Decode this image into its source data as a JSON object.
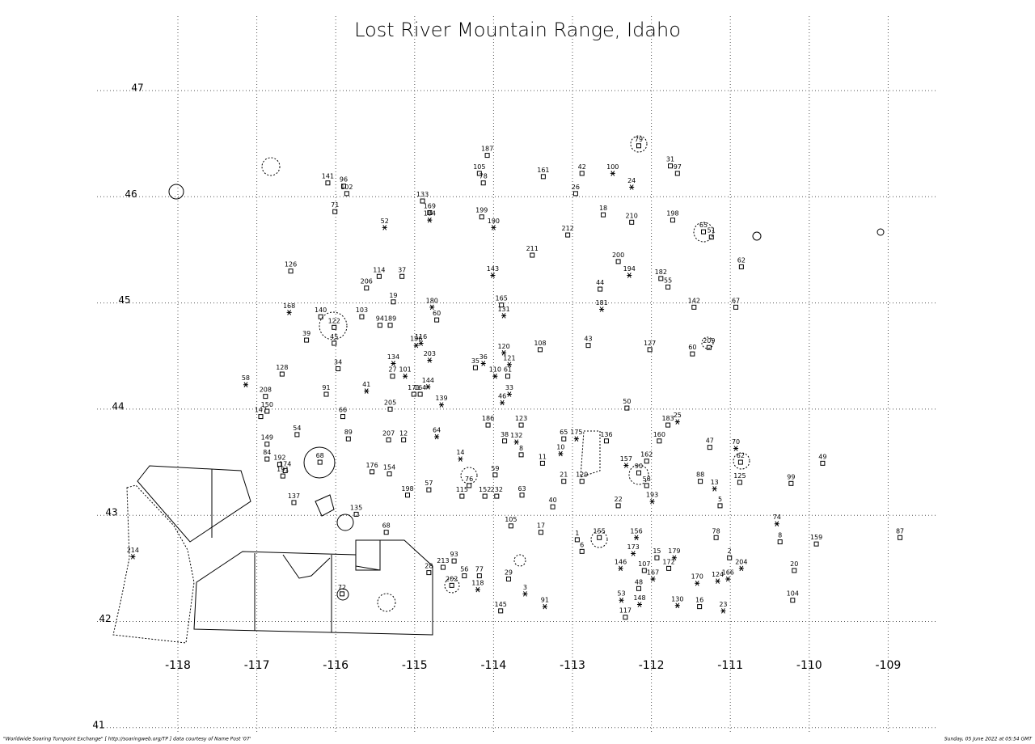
{
  "title": "Lost River Mountain Range, Idaho",
  "footer_left": "\"Worldwide Soaring Turnpoint Exchange\" [ http://soaringweb.org/TP ] data courtesy of Name Post '07'",
  "footer_right": "Sunday, 05 June 2022 at 05:54 GMT",
  "lon_ticks": [
    -118,
    -117,
    -116,
    -115,
    -114,
    -113,
    -112,
    -111,
    -110,
    -109
  ],
  "lat_ticks": [
    47,
    46,
    45,
    44,
    43,
    42,
    41
  ],
  "points": [
    [
      "79",
      -112.16,
      46.48,
      "square"
    ],
    [
      "187",
      -114.08,
      46.39,
      "square"
    ],
    [
      "105",
      -114.18,
      46.22,
      "square"
    ],
    [
      "78",
      -114.13,
      46.13,
      "square"
    ],
    [
      "161",
      -113.37,
      46.19,
      "square"
    ],
    [
      "42",
      -112.88,
      46.22,
      "square"
    ],
    [
      "100",
      -112.49,
      46.22,
      "star"
    ],
    [
      "31",
      -111.76,
      46.29,
      "square"
    ],
    [
      "97",
      -111.67,
      46.22,
      "square"
    ],
    [
      "24",
      -112.25,
      46.09,
      "star"
    ],
    [
      "141",
      -116.1,
      46.13,
      "square"
    ],
    [
      "96",
      -115.9,
      46.1,
      "square"
    ],
    [
      "102",
      -115.86,
      46.03,
      "square"
    ],
    [
      "26",
      -112.96,
      46.03,
      "square"
    ],
    [
      "133",
      -114.9,
      45.96,
      "square"
    ],
    [
      "169",
      -114.81,
      45.85,
      "square"
    ],
    [
      "184",
      -114.81,
      45.78,
      "star"
    ],
    [
      "71",
      -116.01,
      45.86,
      "square"
    ],
    [
      "199",
      -114.15,
      45.81,
      "square"
    ],
    [
      "190",
      -114.0,
      45.71,
      "star"
    ],
    [
      "52",
      -115.38,
      45.71,
      "star"
    ],
    [
      "18",
      -112.61,
      45.83,
      "square"
    ],
    [
      "210",
      -112.25,
      45.76,
      "square"
    ],
    [
      "198",
      -111.73,
      45.78,
      "square"
    ],
    [
      "212",
      -113.06,
      45.64,
      "square"
    ],
    [
      "65",
      -111.34,
      45.67,
      "square"
    ],
    [
      "51",
      -111.24,
      45.62,
      "square"
    ],
    [
      "211",
      -113.51,
      45.45,
      "square"
    ],
    [
      "200",
      -112.42,
      45.39,
      "square"
    ],
    [
      "62",
      -110.86,
      45.34,
      "square"
    ],
    [
      "126",
      -116.57,
      45.3,
      "square"
    ],
    [
      "114",
      -115.45,
      45.25,
      "square"
    ],
    [
      "37",
      -115.16,
      45.25,
      "square"
    ],
    [
      "143",
      -114.01,
      45.26,
      "star"
    ],
    [
      "194",
      -112.28,
      45.26,
      "star"
    ],
    [
      "182",
      -111.88,
      45.23,
      "square"
    ],
    [
      "55",
      -111.79,
      45.15,
      "square"
    ],
    [
      "206",
      -115.61,
      45.14,
      "square"
    ],
    [
      "44",
      -112.65,
      45.13,
      "square"
    ],
    [
      "19",
      -115.27,
      45.01,
      "square"
    ],
    [
      "165",
      -113.9,
      44.98,
      "square"
    ],
    [
      "180",
      -114.78,
      44.96,
      "star"
    ],
    [
      "181",
      -112.63,
      44.94,
      "star"
    ],
    [
      "142",
      -111.46,
      44.96,
      "square"
    ],
    [
      "67",
      -110.93,
      44.96,
      "square"
    ],
    [
      "168",
      -116.59,
      44.91,
      "star"
    ],
    [
      "140",
      -116.19,
      44.87,
      "square"
    ],
    [
      "131",
      -113.87,
      44.88,
      "star"
    ],
    [
      "103",
      -115.67,
      44.87,
      "square"
    ],
    [
      "60",
      -114.72,
      44.84,
      "square"
    ],
    [
      "122",
      -116.02,
      44.77,
      "square"
    ],
    [
      "94",
      -115.44,
      44.79,
      "square"
    ],
    [
      "189",
      -115.31,
      44.79,
      "square"
    ],
    [
      "39",
      -116.37,
      44.65,
      "square"
    ],
    [
      "45",
      -116.02,
      44.62,
      "square"
    ],
    [
      "43",
      -112.8,
      44.6,
      "square"
    ],
    [
      "127",
      -112.02,
      44.56,
      "square"
    ],
    [
      "209",
      -111.27,
      44.58,
      "square"
    ],
    [
      "60",
      -111.48,
      44.52,
      "square"
    ],
    [
      "196",
      -114.98,
      44.6,
      "star"
    ],
    [
      "116",
      -114.92,
      44.62,
      "star"
    ],
    [
      "108",
      -113.41,
      44.56,
      "square"
    ],
    [
      "120",
      -113.87,
      44.53,
      "star"
    ],
    [
      "203",
      -114.81,
      44.46,
      "star"
    ],
    [
      "134",
      -115.27,
      44.43,
      "star"
    ],
    [
      "35",
      -114.23,
      44.39,
      "square"
    ],
    [
      "36",
      -114.13,
      44.43,
      "star"
    ],
    [
      "121",
      -113.8,
      44.42,
      "star"
    ],
    [
      "128",
      -116.68,
      44.33,
      "square"
    ],
    [
      "34",
      -115.97,
      44.38,
      "square"
    ],
    [
      "110",
      -113.98,
      44.31,
      "star"
    ],
    [
      "61",
      -113.82,
      44.31,
      "square"
    ],
    [
      "27",
      -115.28,
      44.31,
      "square"
    ],
    [
      "101",
      -115.12,
      44.31,
      "star"
    ],
    [
      "144",
      -114.83,
      44.21,
      "star"
    ],
    [
      "58",
      -117.14,
      44.23,
      "star"
    ],
    [
      "41",
      -115.61,
      44.17,
      "star"
    ],
    [
      "208",
      -116.89,
      44.12,
      "square"
    ],
    [
      "171",
      -115.01,
      44.14,
      "square"
    ],
    [
      "164",
      -114.93,
      44.14,
      "square"
    ],
    [
      "33",
      -113.8,
      44.14,
      "star"
    ],
    [
      "91",
      -116.12,
      44.14,
      "square"
    ],
    [
      "205",
      -115.31,
      44.0,
      "square"
    ],
    [
      "139",
      -114.66,
      44.04,
      "star"
    ],
    [
      "46",
      -113.89,
      44.06,
      "star"
    ],
    [
      "50",
      -112.31,
      44.01,
      "square"
    ],
    [
      "150",
      -116.87,
      43.98,
      "square"
    ],
    [
      "147",
      -116.95,
      43.93,
      "square"
    ],
    [
      "66",
      -115.91,
      43.93,
      "square"
    ],
    [
      "25",
      -111.67,
      43.88,
      "star"
    ],
    [
      "183",
      -111.79,
      43.85,
      "square"
    ],
    [
      "186",
      -114.07,
      43.85,
      "square"
    ],
    [
      "123",
      -113.65,
      43.85,
      "square"
    ],
    [
      "54",
      -116.49,
      43.76,
      "square"
    ],
    [
      "64",
      -114.72,
      43.74,
      "star"
    ],
    [
      "89",
      -115.84,
      43.72,
      "square"
    ],
    [
      "207",
      -115.33,
      43.71,
      "square"
    ],
    [
      "12",
      -115.14,
      43.71,
      "square"
    ],
    [
      "38",
      -113.86,
      43.7,
      "square"
    ],
    [
      "132",
      -113.71,
      43.69,
      "star"
    ],
    [
      "65",
      -113.11,
      43.72,
      "square"
    ],
    [
      "175",
      -112.95,
      43.72,
      "star"
    ],
    [
      "136",
      -112.57,
      43.7,
      "square"
    ],
    [
      "160",
      -111.9,
      43.7,
      "square"
    ],
    [
      "149",
      -116.87,
      43.67,
      "square"
    ],
    [
      "47",
      -111.26,
      43.64,
      "square"
    ],
    [
      "70",
      -110.93,
      43.63,
      "star"
    ],
    [
      "10",
      -113.15,
      43.58,
      "star"
    ],
    [
      "8",
      -113.65,
      43.57,
      "square"
    ],
    [
      "162",
      -112.06,
      43.51,
      "square"
    ],
    [
      "84",
      -116.87,
      43.53,
      "square"
    ],
    [
      "14",
      -114.42,
      43.53,
      "star"
    ],
    [
      "192",
      -116.71,
      43.48,
      "square"
    ],
    [
      "157",
      -112.32,
      43.47,
      "star"
    ],
    [
      "68",
      -116.2,
      43.5,
      "square"
    ],
    [
      "62",
      -110.87,
      43.5,
      "square"
    ],
    [
      "49",
      -109.83,
      43.49,
      "square"
    ],
    [
      "11",
      -113.38,
      43.49,
      "square"
    ],
    [
      "174",
      -116.64,
      43.42,
      "square"
    ],
    [
      "176",
      -115.54,
      43.41,
      "square"
    ],
    [
      "154",
      -115.32,
      43.39,
      "square"
    ],
    [
      "59",
      -113.98,
      43.38,
      "square"
    ],
    [
      "90",
      -112.16,
      43.4,
      "square"
    ],
    [
      "76",
      -114.31,
      43.28,
      "square"
    ],
    [
      "21",
      -113.11,
      43.32,
      "square"
    ],
    [
      "129",
      -112.88,
      43.32,
      "square"
    ],
    [
      "88",
      -111.38,
      43.32,
      "square"
    ],
    [
      "125",
      -110.88,
      43.31,
      "square"
    ],
    [
      "99",
      -110.23,
      43.3,
      "square"
    ],
    [
      "191",
      -116.67,
      43.37,
      "square"
    ],
    [
      "13",
      -111.2,
      43.25,
      "star"
    ],
    [
      "58",
      -112.06,
      43.28,
      "square"
    ],
    [
      "57",
      -114.82,
      43.24,
      "square"
    ],
    [
      "198",
      -115.09,
      43.19,
      "square"
    ],
    [
      "115",
      -114.4,
      43.18,
      "square"
    ],
    [
      "152",
      -114.11,
      43.18,
      "square"
    ],
    [
      "232",
      -113.96,
      43.18,
      "square"
    ],
    [
      "63",
      -113.64,
      43.19,
      "square"
    ],
    [
      "137",
      -116.53,
      43.12,
      "square"
    ],
    [
      "193",
      -111.99,
      43.13,
      "star"
    ],
    [
      "40",
      -113.25,
      43.08,
      "square"
    ],
    [
      "22",
      -112.42,
      43.09,
      "square"
    ],
    [
      "5",
      -111.13,
      43.09,
      "square"
    ],
    [
      "135",
      -115.74,
      43.01,
      "square"
    ],
    [
      "74",
      -110.41,
      42.92,
      "star"
    ],
    [
      "105",
      -113.78,
      42.9,
      "square"
    ],
    [
      "68",
      -115.36,
      42.84,
      "square"
    ],
    [
      "17",
      -113.4,
      42.84,
      "square"
    ],
    [
      "1",
      -112.94,
      42.77,
      "square"
    ],
    [
      "155",
      -112.66,
      42.79,
      "square"
    ],
    [
      "156",
      -112.19,
      42.79,
      "star"
    ],
    [
      "78",
      -111.18,
      42.79,
      "square"
    ],
    [
      "8",
      -110.37,
      42.75,
      "square"
    ],
    [
      "159",
      -109.91,
      42.73,
      "square"
    ],
    [
      "87",
      -108.85,
      42.79,
      "square"
    ],
    [
      "214",
      -118.57,
      42.61,
      "star"
    ],
    [
      "93",
      -114.5,
      42.57,
      "square"
    ],
    [
      "6",
      -112.88,
      42.66,
      "square"
    ],
    [
      "173",
      -112.23,
      42.64,
      "star"
    ],
    [
      "15",
      -111.93,
      42.6,
      "square"
    ],
    [
      "179",
      -111.71,
      42.6,
      "star"
    ],
    [
      "2",
      -111.01,
      42.6,
      "square"
    ],
    [
      "213",
      -114.64,
      42.51,
      "square"
    ],
    [
      "204",
      -110.86,
      42.5,
      "star"
    ],
    [
      "20",
      -110.19,
      42.48,
      "square"
    ],
    [
      "146",
      -112.39,
      42.5,
      "star"
    ],
    [
      "107",
      -112.09,
      42.48,
      "square"
    ],
    [
      "172",
      -111.78,
      42.5,
      "square"
    ],
    [
      "28",
      -114.82,
      42.46,
      "square"
    ],
    [
      "56",
      -114.37,
      42.43,
      "square"
    ],
    [
      "77",
      -114.18,
      42.43,
      "square"
    ],
    [
      "167",
      -111.98,
      42.4,
      "star"
    ],
    [
      "166",
      -111.03,
      42.4,
      "star"
    ],
    [
      "29",
      -113.81,
      42.4,
      "square"
    ],
    [
      "202",
      -114.53,
      42.34,
      "square"
    ],
    [
      "124",
      -111.16,
      42.38,
      "star"
    ],
    [
      "170",
      -111.42,
      42.36,
      "star"
    ],
    [
      "118",
      -114.2,
      42.3,
      "star"
    ],
    [
      "48",
      -112.16,
      42.31,
      "square"
    ],
    [
      "3",
      -113.6,
      42.26,
      "star"
    ],
    [
      "72",
      -115.92,
      42.26,
      "square"
    ],
    [
      "104",
      -110.21,
      42.2,
      "square"
    ],
    [
      "53",
      -112.38,
      42.2,
      "star"
    ],
    [
      "148",
      -112.15,
      42.16,
      "star"
    ],
    [
      "130",
      -111.67,
      42.15,
      "star"
    ],
    [
      "16",
      -111.39,
      42.14,
      "square"
    ],
    [
      "91",
      -113.35,
      42.14,
      "star"
    ],
    [
      "23",
      -111.09,
      42.1,
      "star"
    ],
    [
      "145",
      -113.91,
      42.1,
      "square"
    ],
    [
      "117",
      -112.33,
      42.04,
      "square"
    ]
  ]
}
